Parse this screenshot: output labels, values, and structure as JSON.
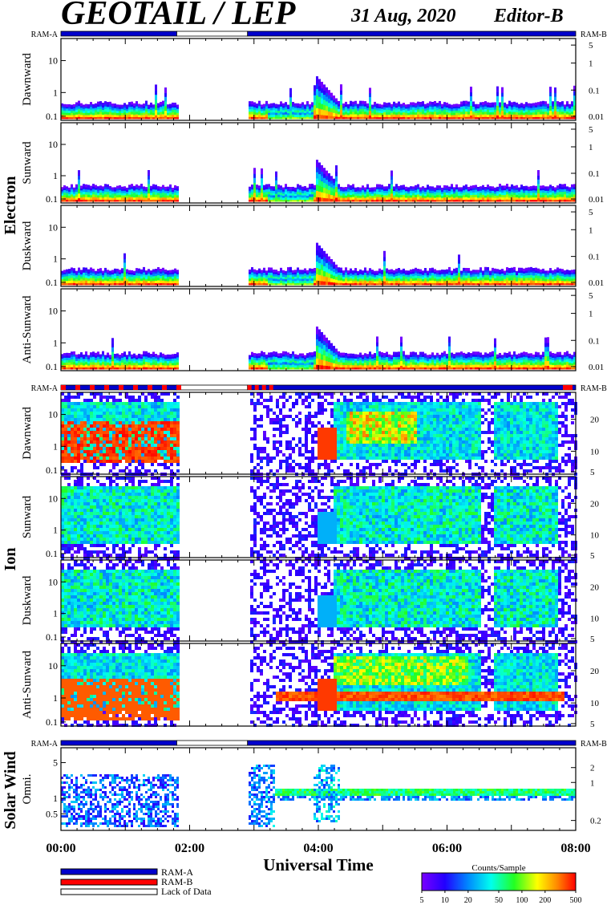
{
  "header": {
    "title": "GEOTAIL / LEP",
    "date": "31 Aug, 2020",
    "editor": "Editor-B"
  },
  "ram_labels": {
    "left": "RAM-A",
    "right": "RAM-B"
  },
  "groups": [
    {
      "name": "Electron",
      "panels": [
        "Dawnward",
        "Sunward",
        "Duskward",
        "Anti-Sunward"
      ]
    },
    {
      "name": "Ion",
      "panels": [
        "Dawnward",
        "Sunward",
        "Duskward",
        "Anti-Sunward"
      ]
    },
    {
      "name": "Solar Wind",
      "panels": [
        "Omni."
      ]
    }
  ],
  "axes": {
    "electron_left_ticks": [
      "10",
      "1",
      "0.1"
    ],
    "electron_right_ticks": [
      "5",
      "1",
      "0.1",
      "0.01"
    ],
    "ion_left_ticks": [
      "10",
      "1",
      "0.1"
    ],
    "ion_right_ticks": [
      "20",
      "10",
      "5"
    ],
    "sw_left_ticks": [
      "5",
      "1",
      "0.5"
    ],
    "sw_right_ticks": [
      "2",
      "1",
      "0.2"
    ],
    "x_ticks": [
      "00:00",
      "02:00",
      "04:00",
      "06:00",
      "08:00"
    ],
    "xlabel": "Universal Time"
  },
  "legend": {
    "ram_a": "RAM-A",
    "ram_b": "RAM-B",
    "lack": "Lack of Data",
    "colors": {
      "ram_a": "#0000cc",
      "ram_b": "#ff0000",
      "lack": "#ffffff"
    }
  },
  "colorbar": {
    "title": "Counts/Sample",
    "ticks": [
      "5",
      "10",
      "20",
      "50",
      "100",
      "200",
      "500"
    ],
    "values": [
      5,
      10,
      20,
      50,
      100,
      200,
      500
    ]
  },
  "chart_data": {
    "type": "heatmap",
    "title": "GEOTAIL / LEP",
    "xlabel": "Universal Time",
    "x_range": [
      "00:00",
      "08:00"
    ],
    "data_gap": [
      "01:48",
      "02:54"
    ],
    "color_scale": {
      "min": 5,
      "max": 500,
      "log": true,
      "unit": "Counts/Sample"
    },
    "ram_bar": {
      "ram_a_color": "#0000cc",
      "ram_b_color": "#ff0000",
      "lack_color": "#ffffff"
    },
    "notable_features": [
      {
        "group": "Electron",
        "time": "03:57",
        "description": "enhancement up to ~2"
      },
      {
        "group": "Ion",
        "time": "04:00",
        "description": "burst near 1"
      },
      {
        "group": "Ion",
        "panel": "Anti-Sunward",
        "range": [
          "03:15",
          "07:50"
        ],
        "level": 1.5
      }
    ]
  }
}
